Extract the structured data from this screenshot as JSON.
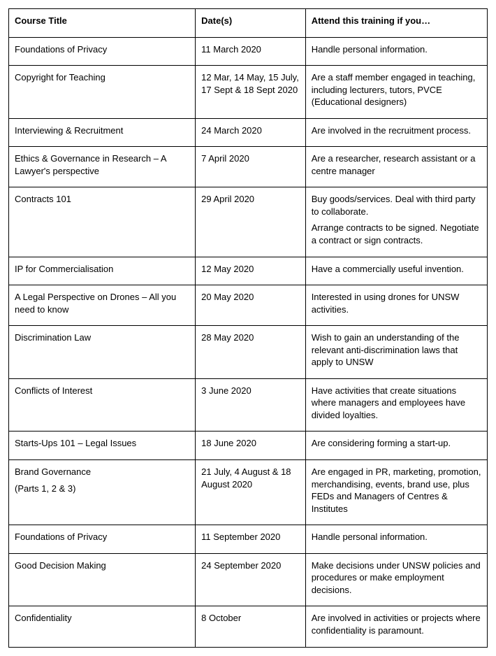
{
  "table": {
    "headers": {
      "title": "Course Title",
      "dates": "Date(s)",
      "attend": "Attend this training if you…"
    },
    "rows": [
      {
        "title_lines": [
          "Foundations of Privacy"
        ],
        "dates": "11 March 2020",
        "attend_paras": [
          "Handle personal information."
        ]
      },
      {
        "title_lines": [
          "Copyright for Teaching"
        ],
        "dates": "12 Mar, 14 May, 15 July, 17 Sept & 18 Sept 2020",
        "attend_paras": [
          "Are a staff member engaged in teaching, including lecturers, tutors, PVCE (Educational designers)"
        ]
      },
      {
        "title_lines": [
          "Interviewing & Recruitment"
        ],
        "dates": "24 March 2020",
        "attend_paras": [
          "Are involved in the recruitment process."
        ]
      },
      {
        "title_lines": [
          "Ethics & Governance in Research – A Lawyer's perspective"
        ],
        "dates": "7 April 2020",
        "attend_paras": [
          "Are a researcher, research assistant or a centre manager"
        ]
      },
      {
        "title_lines": [
          "Contracts 101"
        ],
        "dates": "29 April 2020",
        "attend_paras": [
          "Buy goods/services.  Deal with third party to collaborate.",
          "Arrange contracts to be signed.  Negotiate a contract or sign contracts."
        ]
      },
      {
        "title_lines": [
          "IP for Commercialisation"
        ],
        "dates": "12 May 2020",
        "attend_paras": [
          "Have a commercially useful invention."
        ]
      },
      {
        "title_lines": [
          "A Legal Perspective on Drones – All you need to know"
        ],
        "dates": "20 May 2020",
        "attend_paras": [
          "Interested in using drones for UNSW activities."
        ]
      },
      {
        "title_lines": [
          "Discrimination Law"
        ],
        "dates": "28 May 2020",
        "attend_paras": [
          "Wish to gain an understanding of the relevant anti-discrimination laws that apply to UNSW"
        ]
      },
      {
        "title_lines": [
          "Conflicts of Interest"
        ],
        "dates": "3 June 2020",
        "attend_paras": [
          "Have activities that create situations where managers and employees have divided loyalties."
        ]
      },
      {
        "title_lines": [
          "Starts-Ups 101 – Legal Issues"
        ],
        "dates": "18 June 2020",
        "attend_paras": [
          "Are considering forming a start-up."
        ]
      },
      {
        "title_lines": [
          "Brand Governance",
          "(Parts 1, 2 & 3)"
        ],
        "dates": "21 July, 4 August & 18 August 2020",
        "attend_paras": [
          "Are engaged in PR, marketing, promotion, merchandising, events, brand use, plus FEDs and Managers of Centres & Institutes"
        ]
      },
      {
        "title_lines": [
          "Foundations of Privacy"
        ],
        "dates": "11 September 2020",
        "attend_paras": [
          "Handle personal information."
        ]
      },
      {
        "title_lines": [
          "Good Decision Making"
        ],
        "dates": "24 September 2020",
        "attend_paras": [
          "Make decisions under UNSW policies and procedures or make employment decisions."
        ]
      },
      {
        "title_lines": [
          "Confidentiality"
        ],
        "dates": "8 October",
        "attend_paras": [
          "Are involved in activities or projects where confidentiality is paramount."
        ]
      }
    ]
  }
}
